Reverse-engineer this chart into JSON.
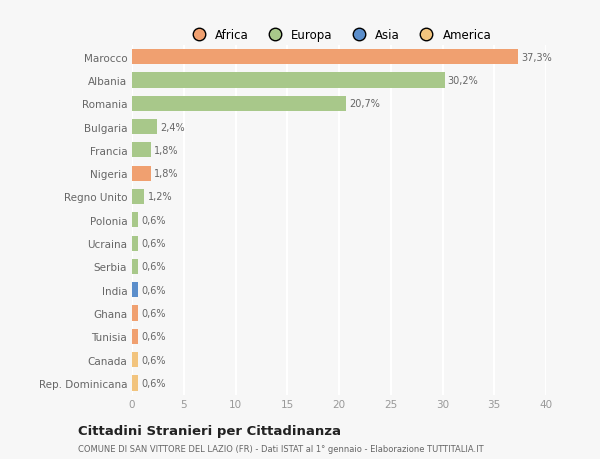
{
  "categories": [
    "Rep. Dominicana",
    "Canada",
    "Tunisia",
    "Ghana",
    "India",
    "Serbia",
    "Ucraina",
    "Polonia",
    "Regno Unito",
    "Nigeria",
    "Francia",
    "Bulgaria",
    "Romania",
    "Albania",
    "Marocco"
  ],
  "values": [
    0.6,
    0.6,
    0.6,
    0.6,
    0.6,
    0.6,
    0.6,
    0.6,
    1.2,
    1.8,
    1.8,
    2.4,
    20.7,
    30.2,
    37.3
  ],
  "labels": [
    "0,6%",
    "0,6%",
    "0,6%",
    "0,6%",
    "0,6%",
    "0,6%",
    "0,6%",
    "0,6%",
    "1,2%",
    "1,8%",
    "1,8%",
    "2,4%",
    "20,7%",
    "30,2%",
    "37,3%"
  ],
  "colors": [
    "#f2c47e",
    "#f2c47e",
    "#f0a070",
    "#f0a070",
    "#5b8ecb",
    "#a8c88a",
    "#a8c88a",
    "#a8c88a",
    "#a8c88a",
    "#f0a070",
    "#a8c88a",
    "#a8c88a",
    "#a8c88a",
    "#a8c88a",
    "#f0a070"
  ],
  "legend_labels": [
    "Africa",
    "Europa",
    "Asia",
    "America"
  ],
  "legend_colors": [
    "#f0a070",
    "#a8c88a",
    "#5b8ecb",
    "#f2c47e"
  ],
  "title": "Cittadini Stranieri per Cittadinanza",
  "subtitle": "COMUNE DI SAN VITTORE DEL LAZIO (FR) - Dati ISTAT al 1° gennaio - Elaborazione TUTTITALIA.IT",
  "xlim": [
    0,
    40
  ],
  "xticks": [
    0,
    5,
    10,
    15,
    20,
    25,
    30,
    35,
    40
  ],
  "background_color": "#f7f7f7",
  "grid_color": "#ffffff",
  "bar_height": 0.65
}
